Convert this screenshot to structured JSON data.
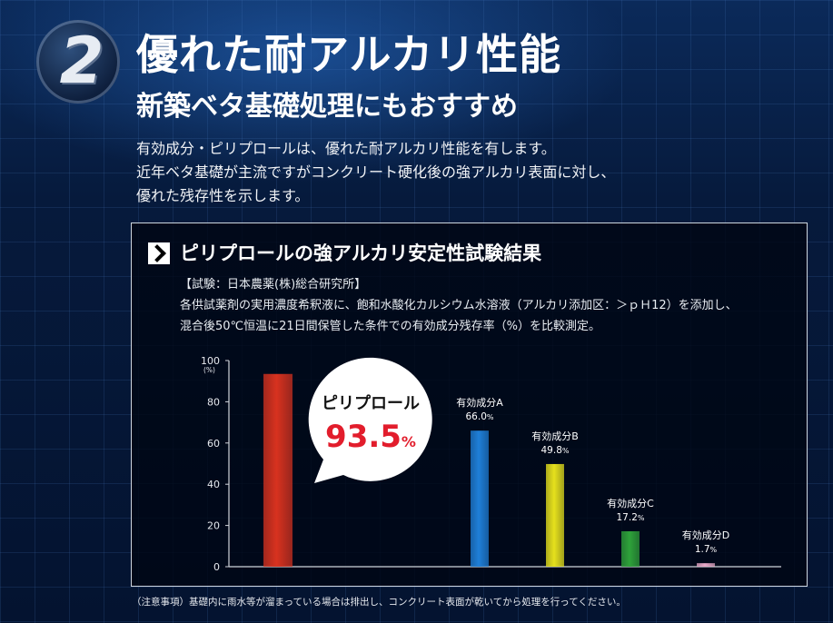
{
  "header": {
    "number": "2",
    "title": "優れた耐アルカリ性能",
    "subtitle": "新築ベタ基礎処理にもおすすめ"
  },
  "intro": {
    "lines": [
      "有効成分・ピリプロールは、優れた耐アルカリ性能を有します。",
      "近年ベタ基礎が主流ですがコンクリート硬化後の強アルカリ表面に対し、",
      "優れた残存性を示します。"
    ]
  },
  "panel": {
    "title": "ピリプロールの強アルカリ安定性試験結果",
    "method_lines": [
      "【試験：日本農薬(株)総合研究所】",
      "各供試薬剤の実用濃度希釈液に、飽和水酸化カルシウム水溶液（アルカリ添加区：＞ｐＨ12）を添加し、",
      "混合後50℃恒温に21日間保管した条件での有効成分残存率（%）を比較測定。"
    ]
  },
  "chart_data": {
    "type": "bar",
    "categories": [
      "ピリプロール",
      "有効成分A",
      "有効成分B",
      "有効成分C",
      "有効成分D"
    ],
    "values": [
      93.5,
      66.0,
      49.8,
      17.2,
      1.7
    ],
    "value_labels": [
      "93.5",
      "66.0",
      "49.8",
      "17.2",
      "1.7"
    ],
    "value_unit": "%",
    "ylim": [
      0,
      100
    ],
    "yticks": [
      0,
      20,
      40,
      60,
      80,
      100
    ],
    "y_unit_label": "(%)",
    "colors": [
      "#d8321f",
      "#1f7fd8",
      "#e6e11c",
      "#2fa23a",
      "#e8a9c8"
    ],
    "callout_color": "#e21d2c"
  },
  "footnote": "（注意事項）基礎内に雨水等が溜まっている場合は排出し、コンクリート表面が乾いてから処理を行ってください。"
}
